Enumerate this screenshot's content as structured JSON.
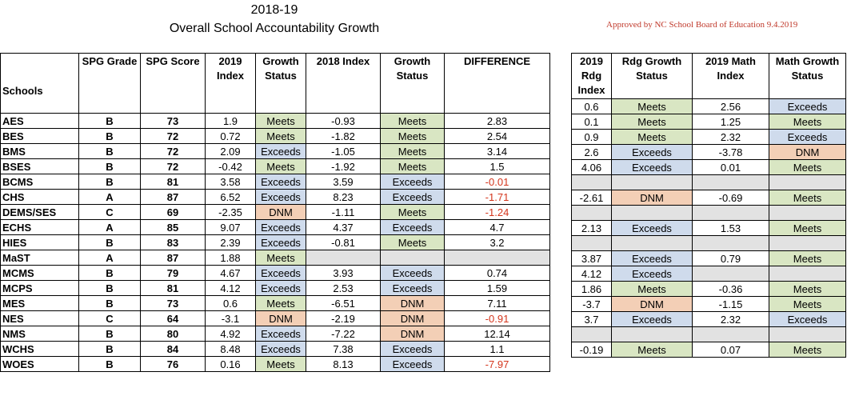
{
  "title_line1": "2018-19",
  "title_line2": "Overall School Accountability Growth",
  "approved_note": "Approved by NC School Board of Education   9.4.2019",
  "colors": {
    "meets": "#d9e6c3",
    "exceeds": "#cfdbec",
    "dnm": "#f3cfb6",
    "blank": "#e2e2e2",
    "negative": "#d4351c"
  },
  "left_headers": [
    "Schools",
    "SPG Grade",
    "SPG Score",
    "2019 Index",
    "Growth Status",
    "2018 Index",
    "Growth Status",
    "DIFFERENCE"
  ],
  "right_headers": [
    "2019 Rdg Index",
    "Rdg Growth Status",
    "2019 Math Index",
    "Math Growth Status"
  ],
  "rows": [
    {
      "school": "AES",
      "grade": "B",
      "score": "73",
      "idx2019": "1.9",
      "status2019": "Meets",
      "idx2018": "-0.93",
      "status2018": "Meets",
      "diff": "2.83",
      "rdg_index": "0.6",
      "rdg_status": "Meets",
      "math_index": "2.56",
      "math_status": "Exceeds"
    },
    {
      "school": "BES",
      "grade": "B",
      "score": "72",
      "idx2019": "0.72",
      "status2019": "Meets",
      "idx2018": "-1.82",
      "status2018": "Meets",
      "diff": "2.54",
      "rdg_index": "0.1",
      "rdg_status": "Meets",
      "math_index": "1.25",
      "math_status": "Meets"
    },
    {
      "school": "BMS",
      "grade": "B",
      "score": "72",
      "idx2019": "2.09",
      "status2019": "Exceeds",
      "idx2018": "-1.05",
      "status2018": "Meets",
      "diff": "3.14",
      "rdg_index": "0.9",
      "rdg_status": "Meets",
      "math_index": "2.32",
      "math_status": "Exceeds"
    },
    {
      "school": "BSES",
      "grade": "B",
      "score": "72",
      "idx2019": "-0.42",
      "status2019": "Meets",
      "idx2018": "-1.92",
      "status2018": "Meets",
      "diff": "1.5",
      "rdg_index": "2.6",
      "rdg_status": "Exceeds",
      "math_index": "-3.78",
      "math_status": "DNM"
    },
    {
      "school": "BCMS",
      "grade": "B",
      "score": "81",
      "idx2019": "3.58",
      "status2019": "Exceeds",
      "idx2018": "3.59",
      "status2018": "Exceeds",
      "diff": "-0.01",
      "rdg_index": "4.06",
      "rdg_status": "Exceeds",
      "math_index": "0.01",
      "math_status": "Meets"
    },
    {
      "school": "CHS",
      "grade": "A",
      "score": "87",
      "idx2019": "6.52",
      "status2019": "Exceeds",
      "idx2018": "8.23",
      "status2018": "Exceeds",
      "diff": "-1.71",
      "rdg_index": "",
      "rdg_status": "",
      "math_index": "",
      "math_status": ""
    },
    {
      "school": "DEMS/SES",
      "grade": "C",
      "score": "69",
      "idx2019": "-2.35",
      "status2019": "DNM",
      "idx2018": "-1.11",
      "status2018": "Meets",
      "diff": "-1.24",
      "rdg_index": "-2.61",
      "rdg_status": "DNM",
      "math_index": "-0.69",
      "math_status": "Meets"
    },
    {
      "school": "ECHS",
      "grade": "A",
      "score": "85",
      "idx2019": "9.07",
      "status2019": "Exceeds",
      "idx2018": "4.37",
      "status2018": "Exceeds",
      "diff": "4.7",
      "rdg_index": "",
      "rdg_status": "",
      "math_index": "",
      "math_status": ""
    },
    {
      "school": "HIES",
      "grade": "B",
      "score": "83",
      "idx2019": "2.39",
      "status2019": "Exceeds",
      "idx2018": "-0.81",
      "status2018": "Meets",
      "diff": "3.2",
      "rdg_index": "2.13",
      "rdg_status": "Exceeds",
      "math_index": "1.53",
      "math_status": "Meets"
    },
    {
      "school": "MaST",
      "grade": "A",
      "score": "87",
      "idx2019": "1.88",
      "status2019": "Meets",
      "idx2018": "",
      "status2018": "",
      "diff": "",
      "rdg_index": "",
      "rdg_status": "",
      "math_index": "",
      "math_status": ""
    },
    {
      "school": "MCMS",
      "grade": "B",
      "score": "79",
      "idx2019": "4.67",
      "status2019": "Exceeds",
      "idx2018": "3.93",
      "status2018": "Exceeds",
      "diff": "0.74",
      "rdg_index": "3.87",
      "rdg_status": "Exceeds",
      "math_index": "0.79",
      "math_status": "Meets"
    },
    {
      "school": "MCPS",
      "grade": "B",
      "score": "81",
      "idx2019": "4.12",
      "status2019": "Exceeds",
      "idx2018": "2.53",
      "status2018": "Exceeds",
      "diff": "1.59",
      "rdg_index": "4.12",
      "rdg_status": "Exceeds",
      "math_index": "",
      "math_status": ""
    },
    {
      "school": "MES",
      "grade": "B",
      "score": "73",
      "idx2019": "0.6",
      "status2019": "Meets",
      "idx2018": "-6.51",
      "status2018": "DNM",
      "diff": "7.11",
      "rdg_index": "1.86",
      "rdg_status": "Meets",
      "math_index": "-0.36",
      "math_status": "Meets"
    },
    {
      "school": "NES",
      "grade": "C",
      "score": "64",
      "idx2019": "-3.1",
      "status2019": "DNM",
      "idx2018": "-2.19",
      "status2018": "DNM",
      "diff": "-0.91",
      "rdg_index": "-3.7",
      "rdg_status": "DNM",
      "math_index": "-1.15",
      "math_status": "Meets"
    },
    {
      "school": "NMS",
      "grade": "B",
      "score": "80",
      "idx2019": "4.92",
      "status2019": "Exceeds",
      "idx2018": "-7.22",
      "status2018": "DNM",
      "diff": "12.14",
      "rdg_index": "3.7",
      "rdg_status": "Exceeds",
      "math_index": "2.32",
      "math_status": "Exceeds"
    },
    {
      "school": "WCHS",
      "grade": "B",
      "score": "84",
      "idx2019": "8.48",
      "status2019": "Exceeds",
      "idx2018": "7.38",
      "status2018": "Exceeds",
      "diff": "1.1",
      "rdg_index": "",
      "rdg_status": "",
      "math_index": "",
      "math_status": ""
    },
    {
      "school": "WOES",
      "grade": "B",
      "score": "76",
      "idx2019": "0.16",
      "status2019": "Meets",
      "idx2018": "8.13",
      "status2018": "Exceeds",
      "diff": "-7.97",
      "rdg_index": "-0.19",
      "rdg_status": "Meets",
      "math_index": "0.07",
      "math_status": "Meets"
    }
  ]
}
